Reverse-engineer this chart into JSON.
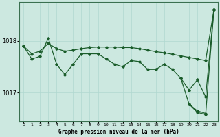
{
  "title": "Graphe pression niveau de la mer (hPa)",
  "bg_color": "#cce8e0",
  "line_color": "#1a5c2a",
  "grid_color": "#b0d8d0",
  "xlim": [
    -0.5,
    23.5
  ],
  "ylim": [
    1016.45,
    1018.75
  ],
  "yticks": [
    1017,
    1018
  ],
  "ytick_labels": [
    "1017",
    "1018"
  ],
  "xticks": [
    0,
    1,
    2,
    3,
    4,
    5,
    6,
    7,
    8,
    9,
    10,
    11,
    12,
    13,
    14,
    15,
    16,
    17,
    18,
    19,
    20,
    21,
    22,
    23
  ],
  "line_upper": [
    1017.9,
    1017.75,
    1017.8,
    1017.95,
    1017.85,
    1017.8,
    1017.82,
    1017.85,
    1017.87,
    1017.88,
    1017.88,
    1017.88,
    1017.87,
    1017.87,
    1017.85,
    1017.82,
    1017.79,
    1017.77,
    1017.74,
    1017.71,
    1017.68,
    1017.65,
    1017.62,
    1018.6
  ],
  "line_main": [
    1017.9,
    1017.65,
    1017.7,
    1018.05,
    1017.55,
    1017.35,
    1017.55,
    1017.75,
    1017.75,
    1017.75,
    1017.65,
    1017.55,
    1017.5,
    1017.62,
    1017.6,
    1017.45,
    1017.45,
    1017.55,
    1017.45,
    1017.28,
    1017.05,
    1017.25,
    1016.92,
    1018.6
  ],
  "line_lower": [
    1017.9,
    null,
    null,
    null,
    null,
    null,
    null,
    null,
    null,
    null,
    null,
    null,
    null,
    null,
    null,
    null,
    null,
    null,
    null,
    1017.28,
    1016.78,
    1016.65,
    1016.6,
    null
  ],
  "line_bottom": [
    null,
    null,
    null,
    null,
    null,
    null,
    null,
    null,
    null,
    null,
    null,
    null,
    null,
    null,
    null,
    null,
    null,
    null,
    null,
    null,
    1016.78,
    1016.62,
    1016.58,
    1018.6
  ]
}
